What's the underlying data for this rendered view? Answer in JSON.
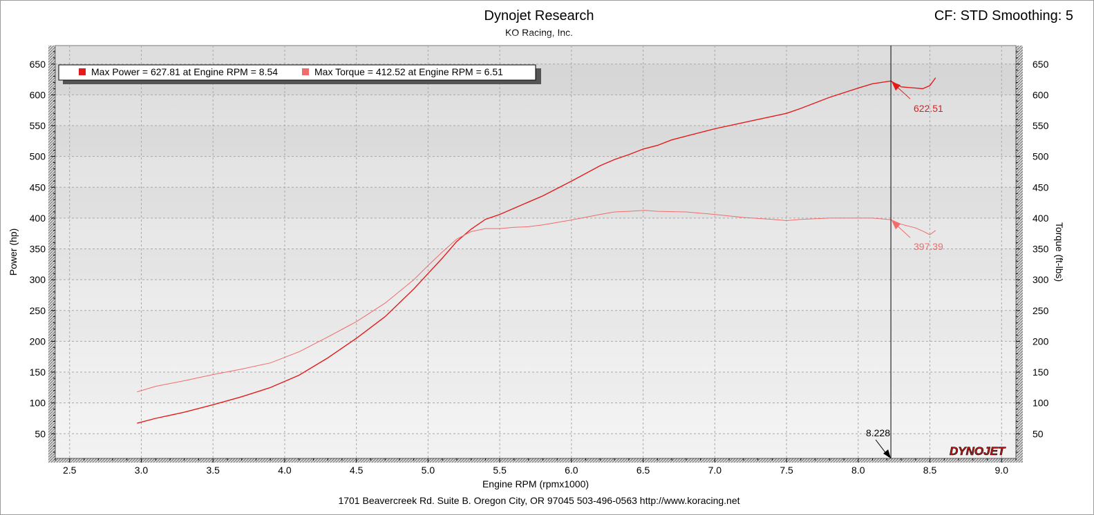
{
  "header": {
    "title": "Dynojet Research",
    "subtitle": "KO Racing, Inc.",
    "cf_info": "CF: STD Smoothing: 5"
  },
  "footer": {
    "address": "1701 Beavercreek Rd. Suite B. Oregon City, OR 97045 503-496-0563 http://www.koracing.net"
  },
  "brand": {
    "logo_text": "DYNOJET"
  },
  "legend": {
    "power": "Max Power = 627.81 at Engine RPM = 8.54",
    "torque": "Max Torque = 412.52 at Engine RPM = 6.51"
  },
  "colors": {
    "power": "#e41a1a",
    "torque": "#f26a6a",
    "plot_bg": "#e6e6e6",
    "grid": "#a8a8a8"
  },
  "cursor": {
    "rpm_label": "8.228",
    "power_label": "622.51",
    "torque_label": "397.39"
  },
  "chart_data": {
    "type": "line",
    "title": "Dynojet Research",
    "subtitle": "KO Racing, Inc.",
    "xlabel": "Engine RPM (rpmx1000)",
    "ylabel": "Power (hp)",
    "y2label": "Torque (ft-lbs)",
    "xlim": [
      2.4,
      9.1
    ],
    "ylim": [
      10,
      680
    ],
    "y2lim": [
      10,
      680
    ],
    "xticks": [
      "2.5",
      "3.0",
      "3.5",
      "4.0",
      "4.5",
      "5.0",
      "5.5",
      "6.0",
      "6.5",
      "7.0",
      "7.5",
      "8.0",
      "8.5",
      "9.0"
    ],
    "yticks": [
      "50",
      "100",
      "150",
      "200",
      "250",
      "300",
      "350",
      "400",
      "450",
      "500",
      "550",
      "600",
      "650"
    ],
    "grid": true,
    "legend_position": "top-left",
    "cursor_x": 8.228,
    "series": [
      {
        "name": "Power",
        "axis": "left",
        "x": [
          2.97,
          3.1,
          3.3,
          3.5,
          3.7,
          3.9,
          4.1,
          4.3,
          4.5,
          4.7,
          4.9,
          5.0,
          5.1,
          5.2,
          5.3,
          5.4,
          5.5,
          5.6,
          5.7,
          5.8,
          6.0,
          6.2,
          6.3,
          6.4,
          6.5,
          6.6,
          6.7,
          6.8,
          7.0,
          7.2,
          7.3,
          7.5,
          7.6,
          7.7,
          7.8,
          8.0,
          8.1,
          8.228,
          8.3,
          8.4,
          8.45,
          8.5,
          8.54
        ],
        "values": [
          67,
          75,
          85,
          97,
          110,
          125,
          145,
          173,
          205,
          240,
          285,
          310,
          335,
          362,
          382,
          398,
          406,
          416,
          426,
          436,
          460,
          485,
          495,
          503,
          512,
          518,
          527,
          533,
          545,
          555,
          560,
          570,
          578,
          587,
          596,
          611,
          618,
          622.51,
          613,
          611,
          610,
          615,
          627.81
        ]
      },
      {
        "name": "Torque",
        "axis": "right",
        "x": [
          2.97,
          3.1,
          3.3,
          3.5,
          3.7,
          3.9,
          4.1,
          4.3,
          4.5,
          4.7,
          4.9,
          5.0,
          5.1,
          5.2,
          5.3,
          5.4,
          5.5,
          5.6,
          5.7,
          5.8,
          6.0,
          6.2,
          6.3,
          6.4,
          6.51,
          6.6,
          6.8,
          7.0,
          7.2,
          7.4,
          7.5,
          7.6,
          7.8,
          8.0,
          8.1,
          8.228,
          8.3,
          8.4,
          8.45,
          8.5,
          8.54
        ],
        "values": [
          118,
          127,
          136,
          146,
          155,
          165,
          183,
          207,
          232,
          262,
          300,
          323,
          345,
          366,
          378,
          383,
          383,
          385,
          386,
          389,
          397,
          406,
          410,
          411,
          412.52,
          411,
          410,
          406,
          401,
          398,
          396,
          398,
          400,
          400,
          400,
          397.39,
          390,
          384,
          379,
          373,
          380
        ]
      }
    ]
  }
}
